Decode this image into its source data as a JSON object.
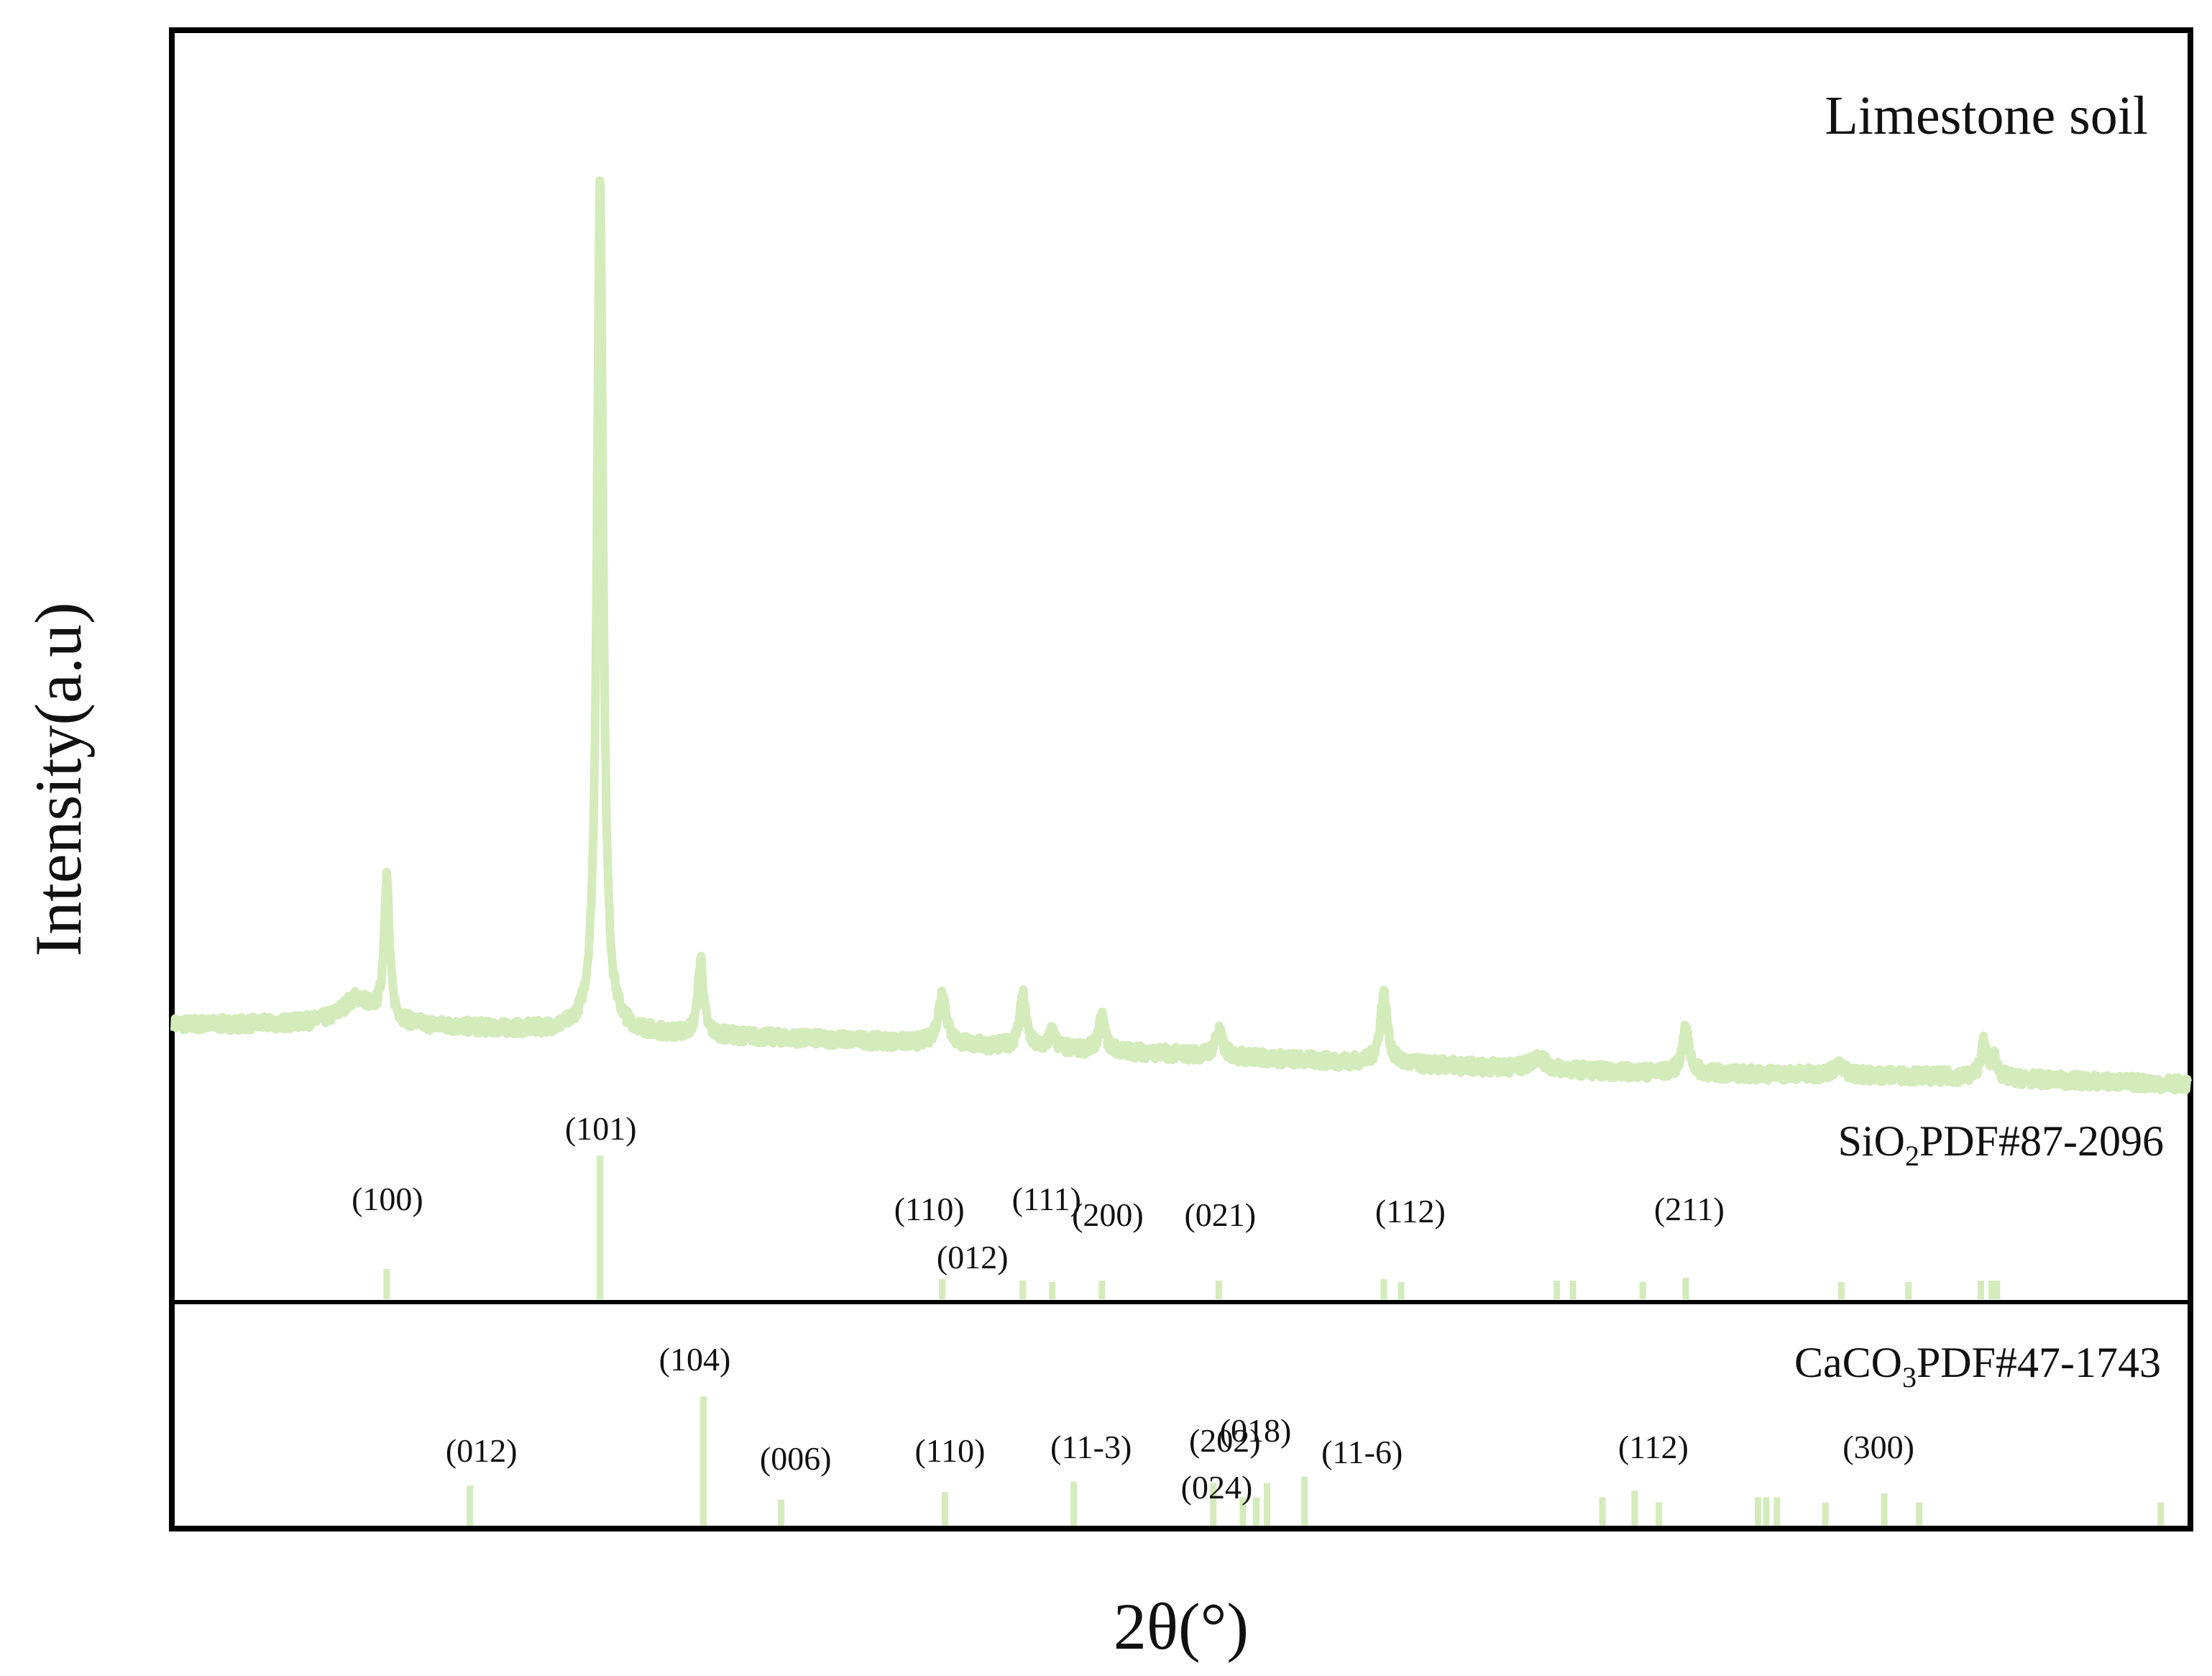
{
  "colors": {
    "pattern": "#d4ebbb",
    "frame": "#000000",
    "text": "#111111",
    "background": "#ffffff"
  },
  "chart_data": {
    "type": "line",
    "title": "",
    "xlabel": "2θ(°)",
    "ylabel": "Intensity(a.u)",
    "x_range": [
      5,
      80
    ],
    "x_ticks_shown": false,
    "y_ticks_shown": false,
    "grid": false,
    "legend": "none",
    "sample": {
      "name": "Limestone soil",
      "baseline": [
        [
          5,
          10.0
        ],
        [
          12,
          10.0
        ],
        [
          20,
          9.3
        ],
        [
          30,
          8.5
        ],
        [
          40,
          7.4
        ],
        [
          50,
          6.2
        ],
        [
          60,
          5.3
        ],
        [
          70,
          5.0
        ],
        [
          80,
          4.2
        ]
      ],
      "peaks": [
        {
          "x": 11.8,
          "height": 2.5,
          "width": 0.7
        },
        {
          "x": 12.9,
          "height": 14.0,
          "width": 0.12
        },
        {
          "x": 20.85,
          "height": 83.0,
          "width": 0.14
        },
        {
          "x": 24.6,
          "height": 7.5,
          "width": 0.12
        },
        {
          "x": 33.6,
          "height": 5.0,
          "width": 0.18
        },
        {
          "x": 36.6,
          "height": 5.2,
          "width": 0.14
        },
        {
          "x": 37.7,
          "height": 1.6,
          "width": 0.14
        },
        {
          "x": 39.55,
          "height": 3.3,
          "width": 0.14
        },
        {
          "x": 43.9,
          "height": 2.5,
          "width": 0.16
        },
        {
          "x": 50.05,
          "height": 6.8,
          "width": 0.16
        },
        {
          "x": 55.8,
          "height": 1.2,
          "width": 0.3
        },
        {
          "x": 61.3,
          "height": 4.3,
          "width": 0.16
        },
        {
          "x": 67.0,
          "height": 0.8,
          "width": 0.3
        },
        {
          "x": 72.4,
          "height": 3.3,
          "width": 0.14
        },
        {
          "x": 72.8,
          "height": 1.8,
          "width": 0.14
        }
      ]
    },
    "references": [
      {
        "name_parts": [
          "SiO",
          "2",
          "PDF#87-2096"
        ],
        "lines": [
          {
            "x": 12.9,
            "i": 21,
            "hkl": "(100)"
          },
          {
            "x": 20.85,
            "i": 100,
            "hkl": "(101)"
          },
          {
            "x": 33.6,
            "i": 14,
            "hkl": "(110)"
          },
          {
            "x": 36.6,
            "i": 13,
            "hkl": "(012)"
          },
          {
            "x": 37.7,
            "i": 12,
            "hkl": "(111)"
          },
          {
            "x": 39.55,
            "i": 13,
            "hkl": "(200)"
          },
          {
            "x": 43.9,
            "i": 13,
            "hkl": "(021)"
          },
          {
            "x": 50.05,
            "i": 14,
            "hkl": "(112)"
          },
          {
            "x": 50.7,
            "i": 12,
            "hkl": ""
          },
          {
            "x": 56.5,
            "i": 13,
            "hkl": ""
          },
          {
            "x": 57.1,
            "i": 13,
            "hkl": ""
          },
          {
            "x": 59.7,
            "i": 12,
            "hkl": ""
          },
          {
            "x": 61.3,
            "i": 15,
            "hkl": "(211)"
          },
          {
            "x": 67.1,
            "i": 12,
            "hkl": ""
          },
          {
            "x": 69.6,
            "i": 12,
            "hkl": ""
          },
          {
            "x": 72.3,
            "i": 13,
            "hkl": ""
          },
          {
            "x": 72.7,
            "i": 13,
            "hkl": ""
          },
          {
            "x": 72.9,
            "i": 13,
            "hkl": ""
          }
        ]
      },
      {
        "name_parts": [
          "CaCO",
          "3",
          "PDF#47-1743"
        ],
        "lines": [
          {
            "x": 16.0,
            "i": 31,
            "hkl": "(012)"
          },
          {
            "x": 24.7,
            "i": 100,
            "hkl": "(104)"
          },
          {
            "x": 27.6,
            "i": 20,
            "hkl": "(006)"
          },
          {
            "x": 33.7,
            "i": 26,
            "hkl": "(110)"
          },
          {
            "x": 38.5,
            "i": 34,
            "hkl": "(11-3)"
          },
          {
            "x": 43.7,
            "i": 33,
            "hkl": "(202)"
          },
          {
            "x": 44.8,
            "i": 22,
            "hkl": ""
          },
          {
            "x": 45.3,
            "i": 22,
            "hkl": "(024)"
          },
          {
            "x": 45.7,
            "i": 33,
            "hkl": "(018)"
          },
          {
            "x": 47.1,
            "i": 38,
            "hkl": "(11-6)"
          },
          {
            "x": 58.2,
            "i": 22,
            "hkl": ""
          },
          {
            "x": 59.4,
            "i": 27,
            "hkl": "(112)"
          },
          {
            "x": 60.3,
            "i": 18,
            "hkl": ""
          },
          {
            "x": 64.0,
            "i": 22,
            "hkl": ""
          },
          {
            "x": 64.3,
            "i": 22,
            "hkl": ""
          },
          {
            "x": 64.7,
            "i": 22,
            "hkl": ""
          },
          {
            "x": 66.5,
            "i": 18,
            "hkl": ""
          },
          {
            "x": 68.7,
            "i": 25,
            "hkl": "(300)"
          },
          {
            "x": 70.0,
            "i": 18,
            "hkl": ""
          },
          {
            "x": 79.0,
            "i": 18,
            "hkl": ""
          }
        ]
      }
    ]
  }
}
